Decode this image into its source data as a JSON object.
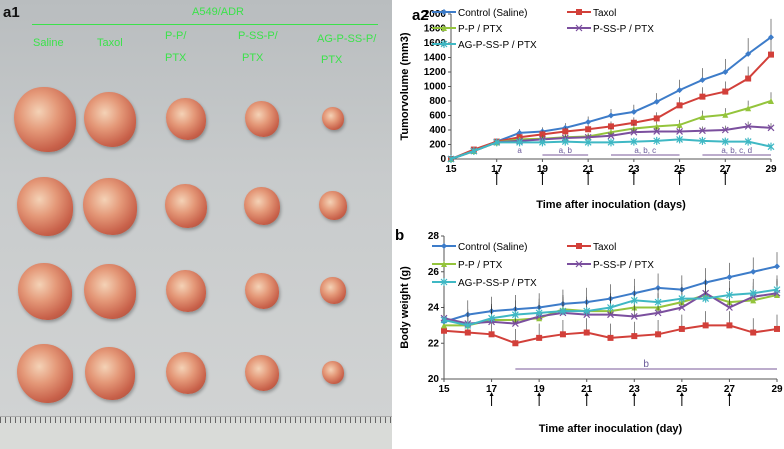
{
  "photo": {
    "panel": "a1",
    "group": "A549/ADR",
    "columns": [
      "Saline",
      "Taxol",
      "P-P/",
      "P-SS-P/",
      "AG-P-SS-P/"
    ],
    "columns_line2": [
      "",
      "",
      "PTX",
      "PTX",
      "PTX"
    ]
  },
  "chart_data": [
    {
      "panel": "a2",
      "type": "line",
      "xlabel": "Time after inoculation (days)",
      "ylabel": "Tumorvolume (mm3)",
      "xlim": [
        15,
        29
      ],
      "ylim": [
        0,
        2000
      ],
      "xticks": [
        15,
        17,
        19,
        21,
        23,
        25,
        27,
        29
      ],
      "yticks": [
        0,
        200,
        400,
        600,
        800,
        1000,
        1200,
        1400,
        1600,
        1800,
        2000
      ],
      "x": [
        15,
        16,
        17,
        18,
        19,
        20,
        21,
        22,
        23,
        24,
        25,
        26,
        27,
        28,
        29
      ],
      "series": [
        {
          "name": "Control (Saline)",
          "color": "#3d7cc9",
          "marker": "diamond",
          "values": [
            0,
            120,
            240,
            360,
            380,
            430,
            510,
            600,
            650,
            790,
            950,
            1090,
            1200,
            1450,
            1680
          ]
        },
        {
          "name": "Taxol",
          "color": "#d2403a",
          "marker": "square",
          "values": [
            0,
            130,
            240,
            300,
            340,
            380,
            410,
            450,
            500,
            560,
            740,
            860,
            930,
            1110,
            1440
          ]
        },
        {
          "name": "P-P / PTX",
          "color": "#94c43c",
          "marker": "triangle",
          "values": [
            0,
            110,
            230,
            270,
            280,
            300,
            310,
            370,
            420,
            450,
            470,
            580,
            610,
            700,
            800
          ]
        },
        {
          "name": "P-SS-P / PTX",
          "color": "#7b4f9e",
          "marker": "x",
          "values": [
            0,
            110,
            230,
            250,
            270,
            290,
            300,
            320,
            370,
            380,
            380,
            390,
            400,
            450,
            430
          ]
        },
        {
          "name": "AG-P-SS-P / PTX",
          "color": "#3fb8c4",
          "marker": "star",
          "values": [
            0,
            110,
            230,
            230,
            230,
            240,
            230,
            230,
            240,
            250,
            270,
            250,
            240,
            240,
            170
          ]
        }
      ],
      "injection_days": [
        17,
        19,
        21,
        23,
        25,
        27
      ],
      "annotations": [
        {
          "text": "a",
          "from": 18,
          "to": 18
        },
        {
          "text": "a, b",
          "from": 19,
          "to": 21
        },
        {
          "text": "a, b, c",
          "from": 22,
          "to": 25
        },
        {
          "text": "a, b, c, d",
          "from": 26,
          "to": 29
        }
      ]
    },
    {
      "panel": "b",
      "type": "line",
      "xlabel": "Time after inoculation (day)",
      "ylabel": "Body weight (g)",
      "xlim": [
        15,
        29
      ],
      "ylim": [
        20,
        28
      ],
      "xticks": [
        15,
        17,
        19,
        21,
        23,
        25,
        27,
        29
      ],
      "yticks": [
        20,
        22,
        24,
        26,
        28
      ],
      "x": [
        15,
        16,
        17,
        18,
        19,
        20,
        21,
        22,
        23,
        24,
        25,
        26,
        27,
        28,
        29
      ],
      "series": [
        {
          "name": "Control (Saline)",
          "color": "#3d7cc9",
          "marker": "diamond",
          "values": [
            23.2,
            23.6,
            23.8,
            23.9,
            24.0,
            24.2,
            24.3,
            24.5,
            24.8,
            25.1,
            25.0,
            25.4,
            25.7,
            26.0,
            26.3
          ]
        },
        {
          "name": "Taxol",
          "color": "#d2403a",
          "marker": "square",
          "values": [
            22.7,
            22.6,
            22.5,
            22.0,
            22.3,
            22.5,
            22.6,
            22.3,
            22.4,
            22.5,
            22.8,
            23.0,
            23.0,
            22.6,
            22.8
          ]
        },
        {
          "name": "P-P / PTX",
          "color": "#94c43c",
          "marker": "triangle",
          "values": [
            23.0,
            23.0,
            23.3,
            23.3,
            23.4,
            23.9,
            23.8,
            23.8,
            24.0,
            24.0,
            24.3,
            24.7,
            24.3,
            24.4,
            24.7
          ]
        },
        {
          "name": "P-SS-P / PTX",
          "color": "#7b4f9e",
          "marker": "x",
          "values": [
            23.4,
            23.1,
            23.2,
            23.1,
            23.5,
            23.7,
            23.6,
            23.6,
            23.5,
            23.7,
            24.0,
            24.8,
            24.0,
            24.6,
            24.8
          ]
        },
        {
          "name": "AG-P-SS-P / PTX",
          "color": "#3fb8c4",
          "marker": "star",
          "values": [
            23.3,
            23.0,
            23.4,
            23.6,
            23.7,
            23.8,
            23.8,
            24.0,
            24.4,
            24.3,
            24.5,
            24.5,
            24.7,
            24.8,
            25.0
          ]
        }
      ],
      "injection_days": [
        17,
        19,
        21,
        23,
        25,
        27
      ],
      "annotations": [
        {
          "text": "b",
          "from": 18,
          "to": 29
        }
      ]
    }
  ]
}
